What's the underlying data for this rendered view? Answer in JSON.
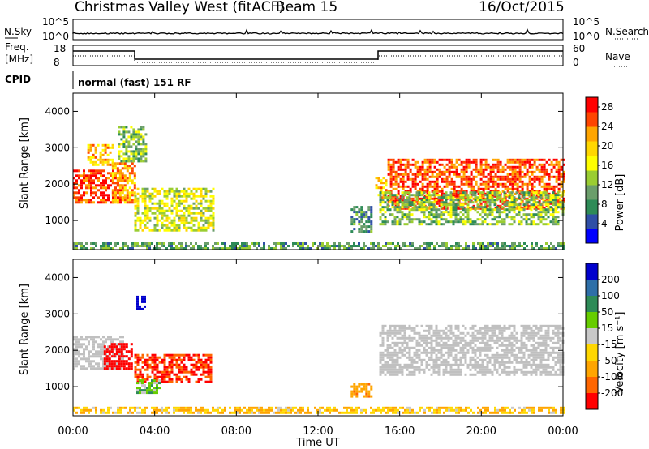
{
  "header": {
    "title": "Christmas Valley West (fitACF)",
    "beam": "Beam 15",
    "date": "16/Oct/2015"
  },
  "status_panels": {
    "nsky_label": "N.Sky",
    "nsky_ticks": [
      "10^5",
      "10^0"
    ],
    "nsearch_label": "N.Search",
    "nsearch_ticks": [
      "10^5",
      "10^0"
    ],
    "freq_label_1": "Freq.",
    "freq_label_2": "[MHz]",
    "freq_ticks": [
      "18",
      "8"
    ],
    "nave_label": "Nave",
    "nave_ticks": [
      "60",
      "0"
    ],
    "cpid_label": "CPID",
    "cpid_text": "normal (fast) 151 RF"
  },
  "colors": {
    "power_scale": [
      "#0000ff",
      "#2f4fa6",
      "#2e8b57",
      "#6b9e6b",
      "#9acd32",
      "#ffff00",
      "#ffd700",
      "#ffa500",
      "#ff4500",
      "#ff0000"
    ],
    "velocity_scale": [
      "#0000cd",
      "#2e6fa8",
      "#2e8b57",
      "#66cd00",
      "#c8c8c8",
      "#ffd700",
      "#ffa500",
      "#ff6600",
      "#ff0000"
    ],
    "ground_scatter": "#c0c0c0"
  },
  "chart_data": [
    {
      "type": "heatmap",
      "panel": "power",
      "x": [
        "00:00",
        "04:00",
        "08:00",
        "12:00",
        "16:00",
        "20:00",
        "00:00"
      ],
      "xlabel": "Time UT",
      "ylabel": "Slant Range [km]",
      "yticks": [
        "1000",
        "2000",
        "3000",
        "4000"
      ],
      "ylim": [
        200,
        4500
      ],
      "colorbar_label": "Power [dB]",
      "colorbar_ticks": [
        "4",
        "8",
        "12",
        "16",
        "20",
        "24",
        "28"
      ],
      "colorbar_range": [
        0,
        30
      ],
      "regions": [
        {
          "t0": 0.0,
          "t1": 2.4,
          "r0": 1500,
          "r1": 2400,
          "level": 27
        },
        {
          "t0": 0.7,
          "t1": 1.9,
          "r0": 2500,
          "r1": 3100,
          "level": 20
        },
        {
          "t0": 1.9,
          "t1": 3.0,
          "r0": 1500,
          "r1": 2600,
          "level": 22
        },
        {
          "t0": 3.0,
          "t1": 6.9,
          "r0": 750,
          "r1": 1900,
          "level": 16
        },
        {
          "t0": 2.2,
          "t1": 3.6,
          "r0": 2600,
          "r1": 3600,
          "level": 12
        },
        {
          "t0": 13.6,
          "t1": 14.6,
          "r0": 700,
          "r1": 1400,
          "level": 8
        },
        {
          "t0": 14.8,
          "t1": 15.3,
          "r0": 1600,
          "r1": 2200,
          "level": 20
        },
        {
          "t0": 15.4,
          "t1": 24.0,
          "r0": 1300,
          "r1": 2700,
          "level": 26
        },
        {
          "t0": 15.0,
          "t1": 24.0,
          "r0": 900,
          "r1": 1800,
          "level": 12
        },
        {
          "t0": 0.0,
          "t1": 24.0,
          "r0": 250,
          "r1": 400,
          "level": 10
        }
      ]
    },
    {
      "type": "heatmap",
      "panel": "velocity",
      "x": [
        "00:00",
        "04:00",
        "08:00",
        "12:00",
        "16:00",
        "20:00",
        "00:00"
      ],
      "xlabel": "Time UT",
      "ylabel": "Slant Range [km]",
      "yticks": [
        "1000",
        "2000",
        "3000",
        "4000"
      ],
      "ylim": [
        200,
        4500
      ],
      "colorbar_label": "Velocity [m s⁻¹]",
      "colorbar_ticks": [
        "200",
        "100",
        "50",
        "15",
        "-15",
        "-50",
        "-100",
        "-200"
      ],
      "colorbar_range": [
        -250,
        250
      ],
      "regions": [
        {
          "t0": 0.0,
          "t1": 2.4,
          "r0": 1500,
          "r1": 2400,
          "level": 0,
          "ground": true
        },
        {
          "t0": 1.5,
          "t1": 2.9,
          "r0": 1500,
          "r1": 2200,
          "level": -170
        },
        {
          "t0": 3.0,
          "t1": 6.8,
          "r0": 1100,
          "r1": 1900,
          "level": -150
        },
        {
          "t0": 3.1,
          "t1": 4.2,
          "r0": 800,
          "r1": 1200,
          "level": 30
        },
        {
          "t0": 3.1,
          "t1": 3.5,
          "r0": 3100,
          "r1": 3500,
          "level": 200
        },
        {
          "t0": 15.0,
          "t1": 24.0,
          "r0": 1300,
          "r1": 2700,
          "level": 0,
          "ground": true
        },
        {
          "t0": 13.6,
          "t1": 14.6,
          "r0": 700,
          "r1": 1100,
          "level": -60
        },
        {
          "t0": 0.0,
          "t1": 24.0,
          "r0": 250,
          "r1": 450,
          "level": -30
        }
      ]
    }
  ]
}
